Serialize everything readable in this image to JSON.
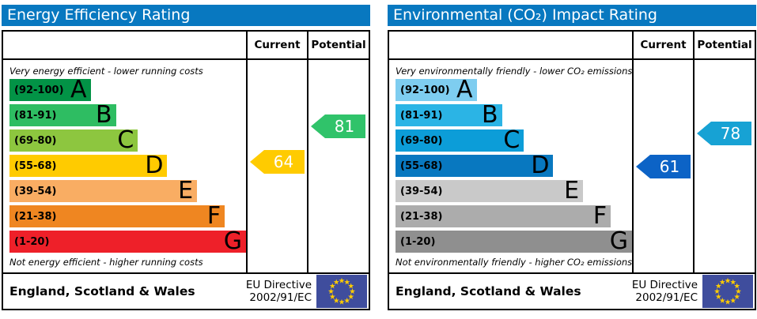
{
  "theme": {
    "header_bg": "#0878c0",
    "header_text": "#ffffff",
    "border": "#000000",
    "arrow_text": "#ffffff",
    "eu_flag_bg": "#3f4d9d",
    "eu_flag_star": "#ffcc00"
  },
  "chart_data": [
    {
      "type": "bar",
      "title": "Energy Efficiency Rating",
      "columns": [
        "Current",
        "Potential"
      ],
      "top_caption": "Very energy efficient - lower running costs",
      "bottom_caption": "Not energy efficient - higher running costs",
      "bands": [
        {
          "letter": "A",
          "range": "(92-100)",
          "min": 92,
          "max": 100,
          "color": "#029346",
          "width_pct": 34.3
        },
        {
          "letter": "B",
          "range": "(81-91)",
          "min": 81,
          "max": 91,
          "color": "#2ebd62",
          "width_pct": 45
        },
        {
          "letter": "C",
          "range": "(69-80)",
          "min": 69,
          "max": 80,
          "color": "#8dc63f",
          "width_pct": 54.3
        },
        {
          "letter": "D",
          "range": "(55-68)",
          "min": 55,
          "max": 68,
          "color": "#ffcb00",
          "width_pct": 66.7
        },
        {
          "letter": "E",
          "range": "(39-54)",
          "min": 39,
          "max": 54,
          "color": "#f9ad63",
          "width_pct": 79.3
        },
        {
          "letter": "F",
          "range": "(21-38)",
          "min": 21,
          "max": 38,
          "color": "#ef8621",
          "width_pct": 91
        },
        {
          "letter": "G",
          "range": "(1-20)",
          "min": 1,
          "max": 20,
          "color": "#ee2029",
          "width_pct": 100
        }
      ],
      "current": {
        "value": 64,
        "band": "D",
        "color": "#ffcb00"
      },
      "potential": {
        "value": 81,
        "band": "B",
        "color": "#30c36a"
      },
      "footer_region": "England, Scotland & Wales",
      "footer_directive": [
        "EU Directive",
        "2002/91/EC"
      ]
    },
    {
      "type": "bar",
      "title": "Environmental (CO₂) Impact Rating",
      "columns": [
        "Current",
        "Potential"
      ],
      "top_caption": "Very environmentally friendly - lower CO₂ emissions",
      "bottom_caption": "Not environmentally friendly - higher CO₂ emissions",
      "bands": [
        {
          "letter": "A",
          "range": "(92-100)",
          "min": 92,
          "max": 100,
          "color": "#7ecdf0",
          "width_pct": 34.3
        },
        {
          "letter": "B",
          "range": "(81-91)",
          "min": 81,
          "max": 91,
          "color": "#2bb4e5",
          "width_pct": 45
        },
        {
          "letter": "C",
          "range": "(69-80)",
          "min": 69,
          "max": 80,
          "color": "#0c9dd8",
          "width_pct": 54.3
        },
        {
          "letter": "D",
          "range": "(55-68)",
          "min": 55,
          "max": 68,
          "color": "#0878c0",
          "width_pct": 66.7
        },
        {
          "letter": "E",
          "range": "(39-54)",
          "min": 39,
          "max": 54,
          "color": "#c9c9c9",
          "width_pct": 79.3
        },
        {
          "letter": "F",
          "range": "(21-38)",
          "min": 21,
          "max": 38,
          "color": "#acacac",
          "width_pct": 91
        },
        {
          "letter": "G",
          "range": "(1-20)",
          "min": 1,
          "max": 20,
          "color": "#8f8f8f",
          "width_pct": 100
        }
      ],
      "current": {
        "value": 61,
        "band": "D",
        "color": "#0c63c6"
      },
      "potential": {
        "value": 78,
        "band": "C",
        "color": "#17a2d4"
      },
      "footer_region": "England, Scotland & Wales",
      "footer_directive": [
        "EU Directive",
        "2002/91/EC"
      ]
    }
  ]
}
